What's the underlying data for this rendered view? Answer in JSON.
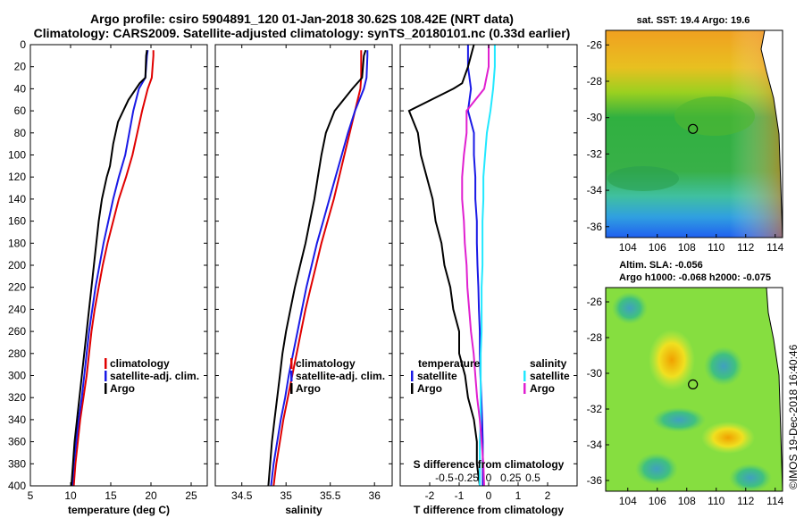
{
  "header": {
    "line1": "Argo profile: csiro 5904891_120 01-Jan-2018 30.62S 108.42E (NRT data)",
    "line2": "Climatology: CARS2009. Satellite-adjusted climatology: synTS_20180101.nc (0.33d earlier)"
  },
  "depth_ticks": [
    0,
    20,
    40,
    60,
    80,
    100,
    120,
    140,
    160,
    180,
    200,
    220,
    240,
    260,
    280,
    300,
    320,
    340,
    360,
    380,
    400
  ],
  "colors": {
    "red": "#e00000",
    "blue": "#1a1ae6",
    "black": "#000000",
    "cyan": "#22e8ff",
    "magenta": "#e020d0",
    "frame": "#000000"
  },
  "chart_data": [
    {
      "type": "line",
      "id": "temperature",
      "xlabel": "temperature (deg C)",
      "xlim": [
        5,
        27
      ],
      "ylim": [
        400,
        0
      ],
      "xticks": [
        5,
        10,
        15,
        20,
        25
      ],
      "xtick_labels": [
        "5",
        "10",
        "15",
        "20",
        "25"
      ],
      "series": [
        {
          "name": "climatology",
          "color": "red",
          "x": [
            20.3,
            20.3,
            20.1,
            19.6,
            18.9,
            18.3,
            17.7,
            16.9,
            16.0,
            15.3,
            14.6,
            14.0,
            13.5,
            13.0,
            12.6,
            12.3,
            12.0,
            11.6,
            11.2,
            10.9,
            10.6,
            10.4
          ],
          "y": [
            5,
            10,
            30,
            40,
            60,
            80,
            100,
            120,
            140,
            160,
            180,
            200,
            220,
            240,
            260,
            280,
            300,
            320,
            340,
            360,
            380,
            400
          ]
        },
        {
          "name": "satellite-adj. clim.",
          "color": "blue",
          "x": [
            19.6,
            19.5,
            19.3,
            18.5,
            17.8,
            17.3,
            16.8,
            16.0,
            15.3,
            14.7,
            14.1,
            13.6,
            13.1,
            12.7,
            12.3,
            12.0,
            11.7,
            11.4,
            11.0,
            10.7,
            10.4,
            10.2
          ],
          "y": [
            5,
            10,
            30,
            40,
            60,
            80,
            100,
            120,
            140,
            160,
            180,
            200,
            220,
            240,
            260,
            280,
            300,
            320,
            340,
            360,
            380,
            400
          ]
        },
        {
          "name": "Argo",
          "color": "black",
          "x": [
            19.5,
            19.4,
            19.3,
            18.6,
            17.2,
            15.9,
            15.3,
            14.9,
            14.5,
            13.9,
            13.5,
            13.2,
            12.9,
            12.6,
            12.3,
            12.0,
            11.7,
            11.4,
            11.1,
            10.8,
            10.5,
            10.3,
            10.1
          ],
          "y": [
            5,
            10,
            30,
            35,
            50,
            70,
            90,
            110,
            120,
            140,
            160,
            180,
            200,
            220,
            240,
            260,
            280,
            300,
            320,
            340,
            360,
            380,
            400
          ]
        }
      ],
      "legend": [
        "climatology",
        "satellite-adj. clim.",
        "Argo"
      ]
    },
    {
      "type": "line",
      "id": "salinity",
      "xlabel": "salinity",
      "xlim": [
        34.2,
        36.2
      ],
      "ylim": [
        400,
        0
      ],
      "xticks": [
        34.5,
        35,
        35.5,
        36
      ],
      "xtick_labels": [
        "34.5",
        "35",
        "35.5",
        "36"
      ],
      "series": [
        {
          "name": "climatology",
          "color": "red",
          "x": [
            35.85,
            35.85,
            35.85,
            35.84,
            35.78,
            35.72,
            35.66,
            35.6,
            35.54,
            35.47,
            35.4,
            35.34,
            35.28,
            35.22,
            35.17,
            35.12,
            35.07,
            35.02,
            34.97,
            34.93,
            34.89,
            34.86
          ],
          "y": [
            5,
            10,
            30,
            40,
            60,
            80,
            100,
            120,
            140,
            160,
            180,
            200,
            220,
            240,
            260,
            280,
            300,
            320,
            340,
            360,
            380,
            400
          ]
        },
        {
          "name": "satellite-adj. clim.",
          "color": "blue",
          "x": [
            35.92,
            35.92,
            35.91,
            35.88,
            35.78,
            35.7,
            35.63,
            35.56,
            35.49,
            35.42,
            35.35,
            35.29,
            35.23,
            35.18,
            35.13,
            35.08,
            35.03,
            34.99,
            34.94,
            34.9,
            34.86,
            34.83
          ],
          "y": [
            5,
            10,
            30,
            40,
            60,
            80,
            100,
            120,
            140,
            160,
            180,
            200,
            220,
            240,
            260,
            280,
            300,
            320,
            340,
            360,
            380,
            400
          ]
        },
        {
          "name": "Argo",
          "color": "black",
          "x": [
            35.9,
            35.88,
            35.86,
            35.75,
            35.55,
            35.45,
            35.4,
            35.36,
            35.32,
            35.27,
            35.22,
            35.16,
            35.1,
            35.05,
            35.0,
            34.96,
            34.93,
            34.9,
            34.87,
            34.84,
            34.82,
            34.8
          ],
          "y": [
            5,
            10,
            30,
            40,
            60,
            80,
            100,
            120,
            140,
            160,
            180,
            200,
            220,
            240,
            260,
            280,
            300,
            320,
            340,
            360,
            380,
            400
          ]
        }
      ],
      "legend": [
        "climatology",
        "satellite-adj. clim.",
        "Argo"
      ]
    },
    {
      "type": "line",
      "id": "difference",
      "xlabel": "T difference from climatology",
      "xlabel_top": "S difference from climatology",
      "xlim": [
        -3,
        3
      ],
      "ylim": [
        400,
        0
      ],
      "xticks": [
        -2,
        -1,
        0,
        1,
        2
      ],
      "xtick_labels": [
        "-2",
        "-1",
        "0",
        "1",
        "2"
      ],
      "sticks": [
        -0.5,
        -0.25,
        0,
        0.25,
        0.5
      ],
      "stick_labels": [
        "-0.5",
        "-0.25",
        "0",
        "0.25",
        "0.5"
      ],
      "series": [
        {
          "name": "temperature satellite",
          "color": "blue",
          "x": [
            -0.7,
            -0.7,
            -0.6,
            -0.7,
            -0.5,
            -0.5,
            -0.45,
            -0.45,
            -0.4,
            -0.4,
            -0.38,
            -0.35,
            -0.33,
            -0.3,
            -0.3,
            -0.28,
            -0.25,
            -0.22,
            -0.2,
            -0.2,
            -0.2
          ],
          "y": [
            0,
            20,
            40,
            60,
            80,
            100,
            120,
            140,
            160,
            180,
            200,
            220,
            240,
            260,
            280,
            300,
            320,
            340,
            360,
            380,
            400
          ]
        },
        {
          "name": "temperature Argo",
          "color": "black",
          "x": [
            -0.5,
            -0.7,
            -0.9,
            -1.2,
            -2.7,
            -2.4,
            -2.3,
            -2.1,
            -1.9,
            -1.8,
            -1.6,
            -1.5,
            -1.3,
            -1.2,
            -1.0,
            -1.0,
            -0.8,
            -0.7,
            -0.5,
            -0.4,
            -0.4,
            -0.3
          ],
          "y": [
            0,
            20,
            35,
            40,
            60,
            80,
            100,
            120,
            140,
            160,
            180,
            200,
            220,
            240,
            260,
            280,
            300,
            320,
            340,
            360,
            380,
            400
          ]
        },
        {
          "name": "salinity satellite",
          "color": "cyan",
          "x": [
            0.07,
            0.07,
            0.05,
            0.02,
            -0.02,
            -0.04,
            -0.06,
            -0.06,
            -0.07,
            -0.07,
            -0.07,
            -0.08,
            -0.08,
            -0.08,
            -0.09,
            -0.09,
            -0.09,
            -0.09,
            -0.1,
            -0.1,
            -0.1
          ],
          "y": [
            0,
            20,
            40,
            60,
            80,
            100,
            120,
            140,
            160,
            180,
            200,
            220,
            240,
            260,
            280,
            300,
            320,
            340,
            360,
            380,
            400
          ]
        },
        {
          "name": "salinity Argo",
          "color": "magenta",
          "x": [
            0.0,
            0.0,
            -0.05,
            -0.25,
            -0.25,
            -0.28,
            -0.3,
            -0.3,
            -0.28,
            -0.27,
            -0.25,
            -0.24,
            -0.22,
            -0.2,
            -0.17,
            -0.15,
            -0.13,
            -0.1,
            -0.08,
            -0.06,
            -0.05
          ],
          "y": [
            0,
            20,
            40,
            60,
            80,
            100,
            120,
            140,
            160,
            180,
            200,
            220,
            240,
            260,
            280,
            300,
            320,
            340,
            360,
            380,
            400
          ]
        }
      ],
      "legend_groups": [
        {
          "title": "temperature",
          "items": [
            "satellite",
            "Argo"
          ]
        },
        {
          "title": "salinity",
          "items": [
            "satellite",
            "Argo"
          ]
        }
      ]
    },
    {
      "type": "heatmap",
      "id": "sst_map",
      "title": "sat. SST: 19.4 Argo: 19.6",
      "xlim": [
        102.5,
        114.5
      ],
      "ylim": [
        -36.6,
        -25.2
      ],
      "xticks": [
        104,
        106,
        108,
        110,
        112,
        114
      ],
      "yticks": [
        -26,
        -28,
        -30,
        -32,
        -34,
        -36
      ],
      "ytick_labels": [
        "-26",
        "-28",
        "-30",
        "-32",
        "-34",
        "-36"
      ],
      "marker": {
        "lon": 108.42,
        "lat": -30.62
      }
    },
    {
      "type": "heatmap",
      "id": "sla_map",
      "title_line1": "Altim. SLA: -0.056",
      "title_line2": "Argo h1000: -0.068 h2000: -0.075",
      "xlim": [
        102.5,
        114.5
      ],
      "ylim": [
        -36.6,
        -25.2
      ],
      "xticks": [
        104,
        106,
        108,
        110,
        112,
        114
      ],
      "yticks": [
        -26,
        -28,
        -30,
        -32,
        -34,
        -36
      ],
      "ytick_labels": [
        "-26",
        "-28",
        "-30",
        "-32",
        "-34",
        "-36"
      ],
      "marker": {
        "lon": 108.42,
        "lat": -30.62
      }
    }
  ],
  "credit": "©IMOS 19-Dec-2018 16:40:46"
}
